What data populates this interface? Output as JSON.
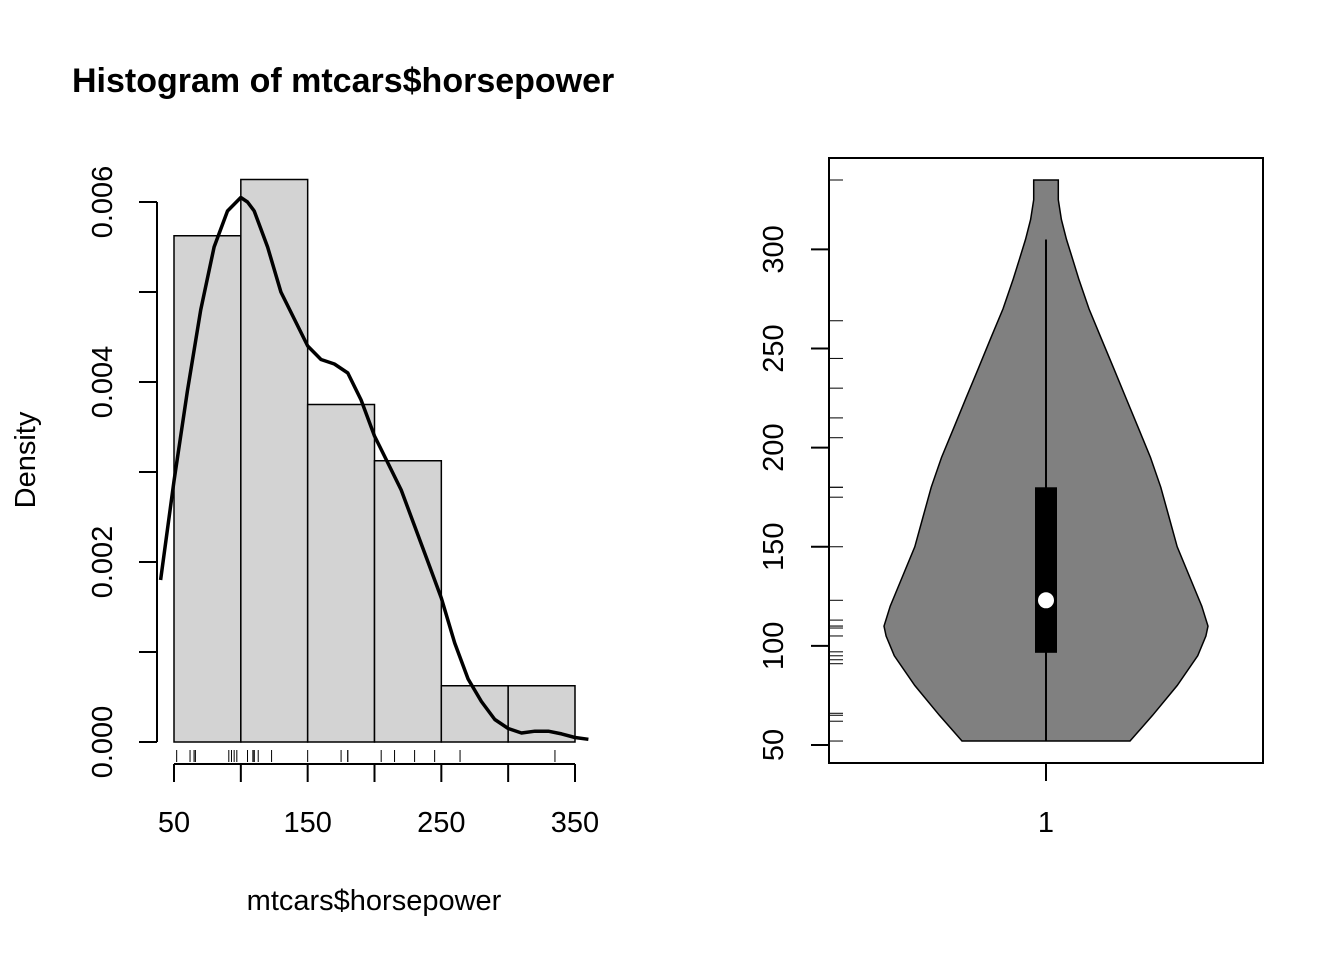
{
  "chart_data": [
    {
      "type": "histogram",
      "title": "Histogram of mtcars$horsepower",
      "xlabel": "mtcars$horsepower",
      "ylabel": "Density",
      "xlim": [
        50,
        350
      ],
      "ylim": [
        0,
        0.006
      ],
      "x_ticks": [
        "50",
        "150",
        "250",
        "350"
      ],
      "y_ticks": [
        "0.000",
        "0.002",
        "0.004",
        "0.006"
      ],
      "bins": [
        {
          "from": 50,
          "to": 100,
          "density": 0.005625
        },
        {
          "from": 100,
          "to": 150,
          "density": 0.00625
        },
        {
          "from": 150,
          "to": 200,
          "density": 0.00375
        },
        {
          "from": 200,
          "to": 250,
          "density": 0.003125
        },
        {
          "from": 250,
          "to": 300,
          "density": 0.000625
        },
        {
          "from": 300,
          "to": 350,
          "density": 0.000625
        }
      ],
      "density_curve": {
        "x": [
          40,
          50,
          60,
          70,
          80,
          90,
          100,
          105,
          110,
          120,
          130,
          140,
          150,
          160,
          170,
          180,
          190,
          200,
          210,
          220,
          230,
          240,
          250,
          260,
          270,
          280,
          290,
          300,
          310,
          320,
          330,
          340,
          350,
          360
        ],
        "y": [
          0.0018,
          0.0029,
          0.0039,
          0.0048,
          0.0055,
          0.0059,
          0.00605,
          0.006,
          0.0059,
          0.0055,
          0.005,
          0.0047,
          0.0044,
          0.00425,
          0.0042,
          0.0041,
          0.0038,
          0.0034,
          0.0031,
          0.0028,
          0.0024,
          0.002,
          0.0016,
          0.0011,
          0.0007,
          0.00045,
          0.00025,
          0.00015,
          0.0001,
          0.00012,
          0.00012,
          9e-05,
          5e-05,
          3e-05
        ]
      },
      "rug": [
        52,
        62,
        65,
        66,
        91,
        93,
        95,
        97,
        105,
        109,
        110,
        110,
        113,
        123,
        150,
        175,
        180,
        180,
        205,
        215,
        230,
        245,
        264,
        335
      ]
    },
    {
      "type": "violin",
      "category": "1",
      "ylim": [
        50,
        335
      ],
      "y_ticks": [
        "50",
        "100",
        "150",
        "200",
        "250",
        "300"
      ],
      "min": 52,
      "max": 335,
      "whisker_low": 52,
      "whisker_high": 305,
      "q1": 96.5,
      "median": 123,
      "q3": 180,
      "fill_color": "#808080",
      "density_profile": {
        "y": [
          52,
          65,
          80,
          95,
          105,
          110,
          120,
          135,
          150,
          165,
          180,
          195,
          210,
          225,
          240,
          255,
          270,
          285,
          295,
          305,
          315,
          325,
          335
        ],
        "half_width": [
          0.41,
          0.52,
          0.64,
          0.74,
          0.78,
          0.79,
          0.76,
          0.7,
          0.64,
          0.6,
          0.56,
          0.51,
          0.45,
          0.39,
          0.33,
          0.27,
          0.21,
          0.16,
          0.13,
          0.1,
          0.075,
          0.06,
          0.06
        ]
      },
      "rug": [
        52,
        62,
        65,
        66,
        91,
        93,
        95,
        97,
        105,
        109,
        110,
        110,
        113,
        123,
        150,
        175,
        180,
        180,
        205,
        215,
        230,
        245,
        264,
        335
      ]
    }
  ]
}
